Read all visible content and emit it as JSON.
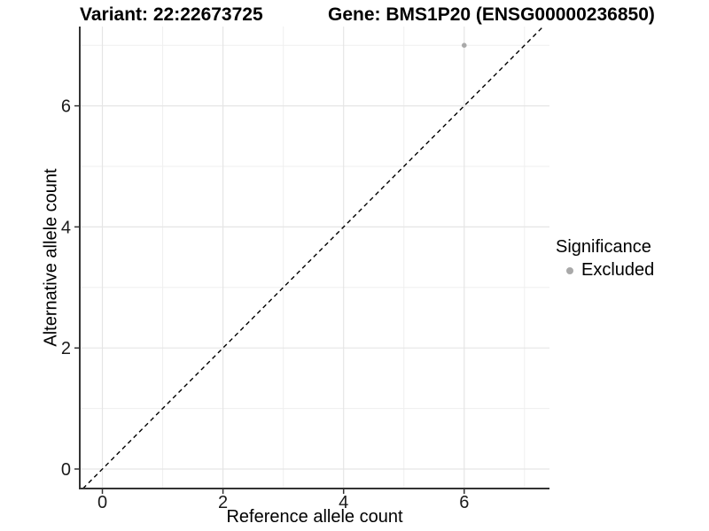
{
  "chart_data": {
    "type": "scatter",
    "titles": {
      "left": "Variant: 22:22673725",
      "right": "Gene: BMS1P20 (ENSG00000236850)"
    },
    "xlabel": "Reference allele count",
    "ylabel": "Alternative allele count",
    "x_ticks": [
      0,
      2,
      4,
      6
    ],
    "y_ticks": [
      0,
      2,
      4,
      6
    ],
    "x_minor": [
      1,
      3,
      5,
      7
    ],
    "y_minor": [
      1,
      3,
      5,
      7
    ],
    "xlim": [
      -0.375,
      7.414
    ],
    "ylim": [
      -0.322,
      7.31
    ],
    "grid": "major and minor, light grey on white",
    "identity_line": {
      "type": "y=x",
      "style": "dashed",
      "color": "#000000"
    },
    "points": [
      {
        "x": 6,
        "y": 7,
        "series": "Excluded"
      }
    ],
    "legend": {
      "title": "Significance",
      "position": "right",
      "entries": [
        {
          "label": "Excluded",
          "color": "#a9a9a9"
        }
      ]
    },
    "colors": {
      "point": "#a9a9a9",
      "grid_major": "#e5e5e5",
      "grid_minor": "#efefef",
      "axis_line": "#333333",
      "tick_label": "#1a1a1a"
    }
  }
}
